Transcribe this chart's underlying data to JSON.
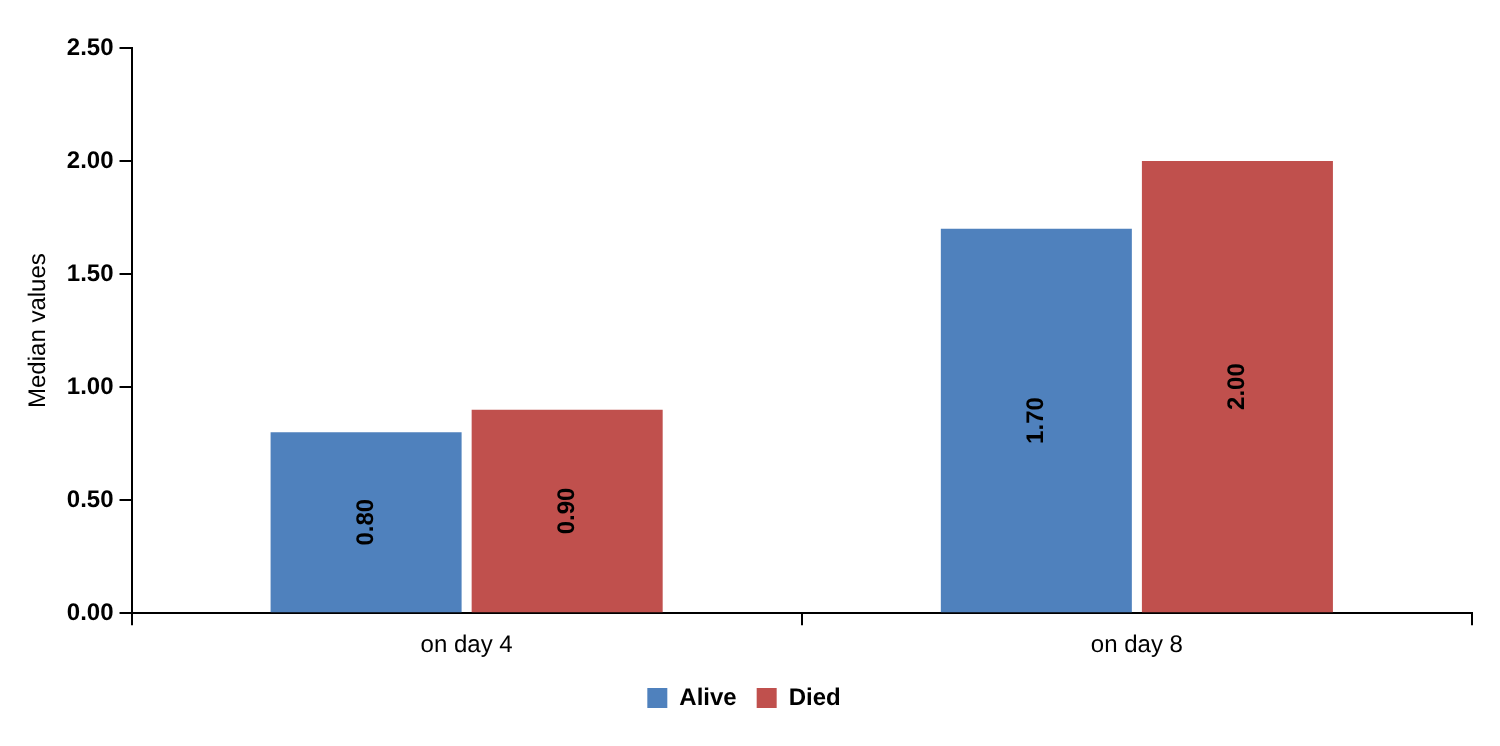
{
  "chart_data": {
    "type": "bar",
    "ylabel": "Median values",
    "categories": [
      "on day 4",
      "on day 8"
    ],
    "series": [
      {
        "name": "Alive",
        "color": "#4f81bd",
        "values": [
          0.8,
          1.7
        ],
        "value_labels": [
          "0.80",
          "1.70"
        ]
      },
      {
        "name": "Died",
        "color": "#c0504d",
        "values": [
          0.9,
          2.0
        ],
        "value_labels": [
          "0.90",
          "2.00"
        ]
      }
    ],
    "ylim": [
      0,
      2.5
    ],
    "yticks": [
      {
        "value": 0,
        "label": "0.00"
      },
      {
        "value": 0.5,
        "label": "0.50"
      },
      {
        "value": 1,
        "label": "1.00"
      },
      {
        "value": 1.5,
        "label": "1.50"
      },
      {
        "value": 2,
        "label": "2.00"
      },
      {
        "value": 2.5,
        "label": "2.50"
      }
    ],
    "grid": false,
    "legend": "bottom"
  }
}
